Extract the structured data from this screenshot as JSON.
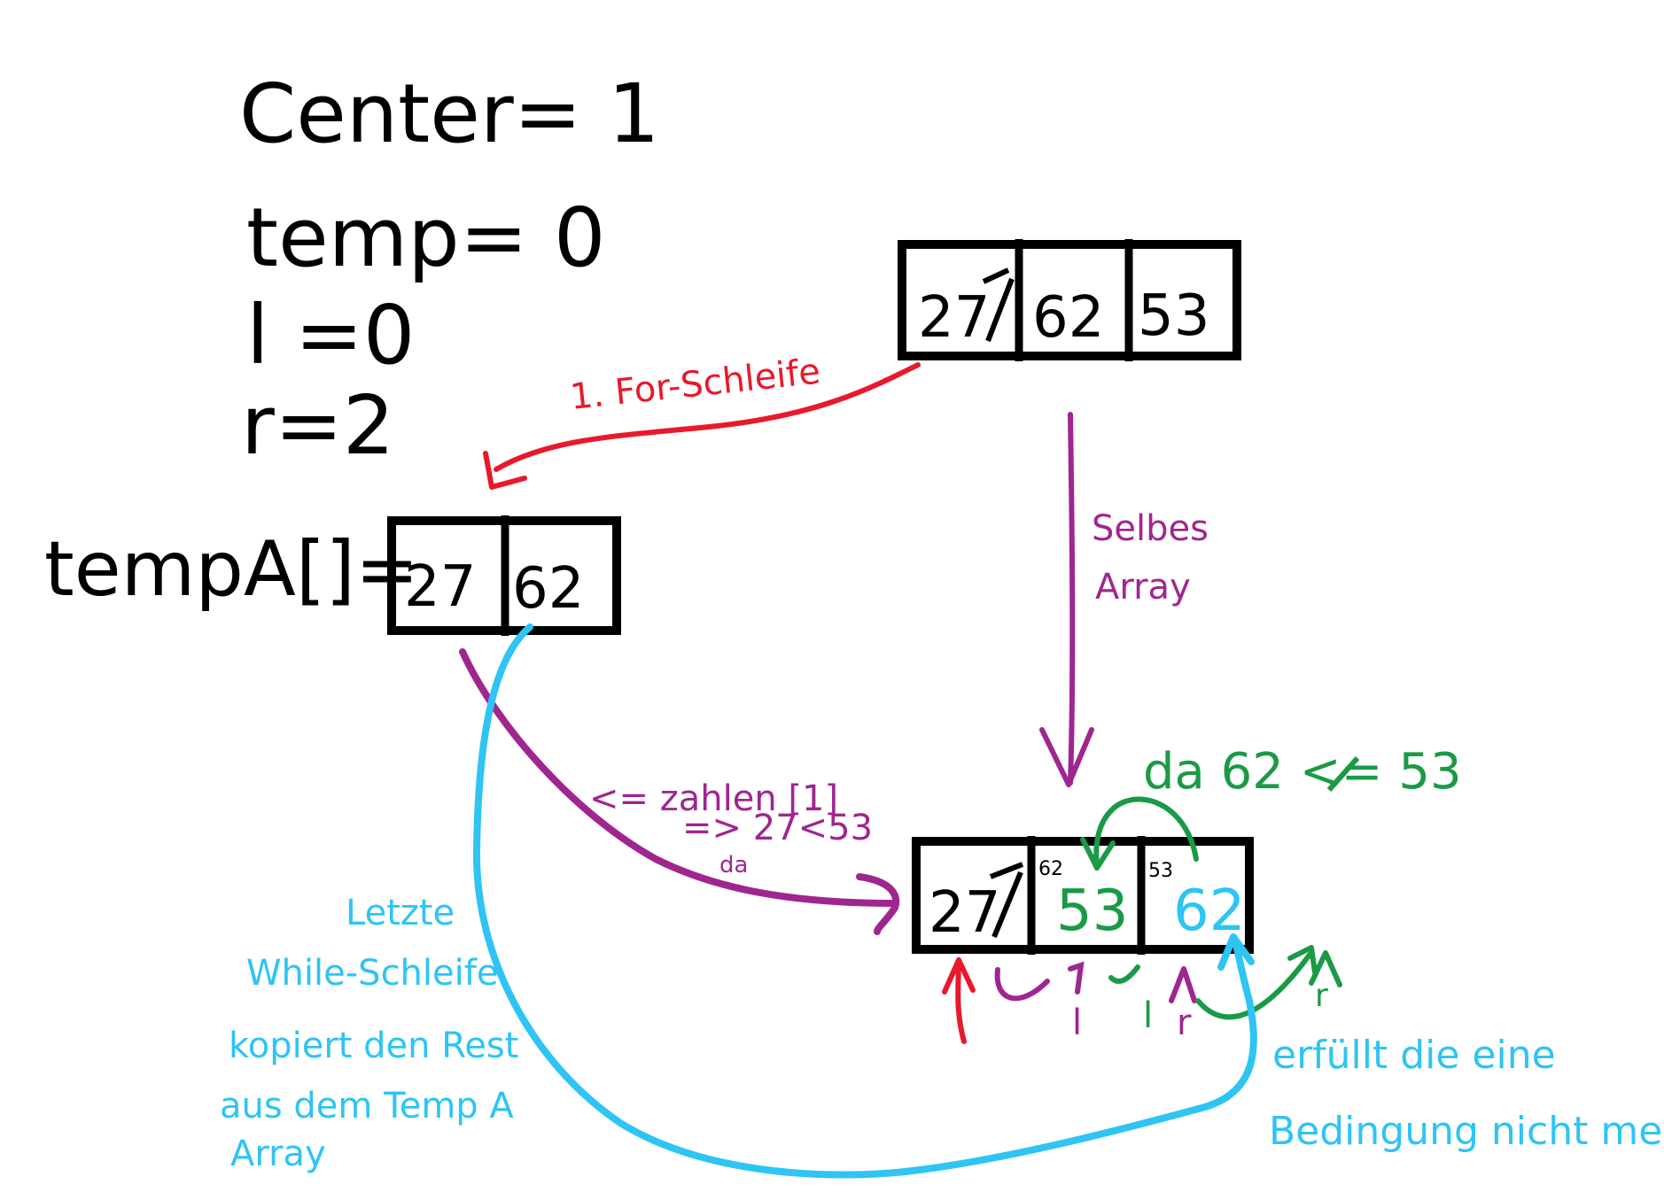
{
  "variables": {
    "center": "Center= 1",
    "temp": "temp= 0",
    "l": "l =0",
    "r": "r=2"
  },
  "arrays": {
    "original": {
      "cells": [
        "27",
        "62",
        "53"
      ],
      "first_cell_crossed": "7"
    },
    "temp_array": {
      "label": "tempA[]=",
      "cells": [
        "27",
        "62"
      ]
    },
    "result": {
      "cells": [
        "27",
        "53",
        "62"
      ],
      "old_values": [
        "",
        "62",
        "53"
      ],
      "first_cell_crossed": "7"
    }
  },
  "annotations": {
    "for_loop": "1. For-Schleife",
    "same_array_line1": "Selbes",
    "same_array_line2": "Array",
    "compare_line1": "<= zahlen [1]",
    "compare_line2": "=> 27<53",
    "compare_line3": "da",
    "green_condition": "da 62 <= 53",
    "last_while": [
      "Letzte",
      "While-Schleife",
      "kopiert den Rest",
      "aus dem Temp A",
      "Array"
    ],
    "condition_fail": [
      "erfüllt die eine",
      "Bedingung nicht mehr"
    ],
    "pointer_l_purple": "l",
    "pointer_l_green": "l",
    "pointer_r_purple": "r",
    "pointer_r_green": "r"
  },
  "colors": {
    "ink": "#000000",
    "red": "#e8192c",
    "purple": "#a0268f",
    "green": "#1a9a45",
    "cyan": "#2ec4f3"
  }
}
